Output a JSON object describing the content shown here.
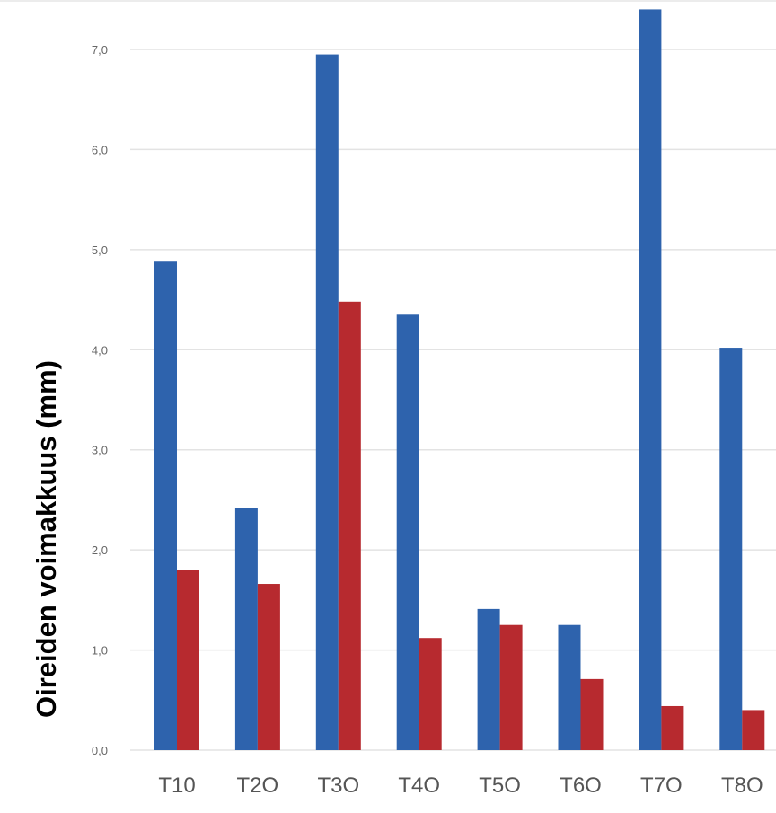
{
  "chart_data": {
    "type": "bar",
    "categories": [
      "T10",
      "T2O",
      "T3O",
      "T4O",
      "T5O",
      "T6O",
      "T7O",
      "T8O"
    ],
    "series": [
      {
        "values": [
          4.88,
          2.42,
          6.95,
          4.35,
          1.41,
          1.25,
          7.4,
          4.02
        ]
      },
      {
        "values": [
          1.8,
          1.66,
          4.48,
          1.12,
          1.25,
          0.71,
          0.44,
          0.4
        ]
      }
    ],
    "title": "",
    "xlabel": "",
    "ylabel": "Oireiden voimakkuus (mm)",
    "ylim": [
      0,
      7.0
    ],
    "yticks": [
      "0,0",
      "1,0",
      "2,0",
      "3,0",
      "4,0",
      "5,0",
      "6,0",
      "7,0"
    ],
    "grid": true,
    "colors": [
      "#2E63AD",
      "#B72A2F"
    ]
  }
}
